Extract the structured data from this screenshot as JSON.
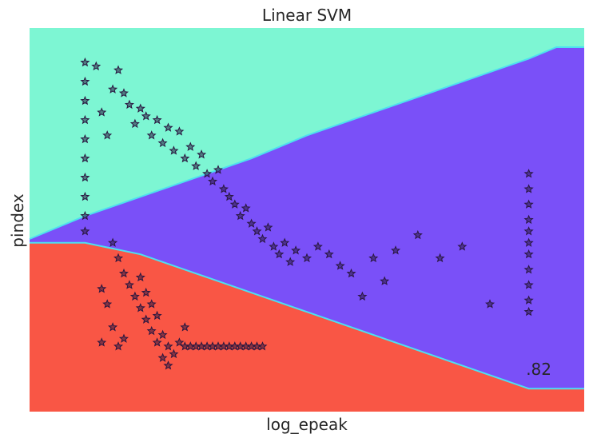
{
  "chart_data": {
    "type": "scatter",
    "title": "Linear SVM",
    "xlabel": "log_epeak",
    "ylabel": "pindex",
    "xlim": [
      0,
      1
    ],
    "ylim": [
      0,
      1
    ],
    "grid": false,
    "legend": "none",
    "score_label": ".82",
    "region_colors": {
      "top": "#7df6d3",
      "middle": "#7a50f8",
      "bottom": "#f95645",
      "boundary": "#4de0f0"
    },
    "decision_boundaries": {
      "upper": [
        [
          0.0,
          0.45
        ],
        [
          0.1,
          0.51
        ],
        [
          0.2,
          0.56
        ],
        [
          0.3,
          0.61
        ],
        [
          0.4,
          0.66
        ],
        [
          0.5,
          0.72
        ],
        [
          0.6,
          0.77
        ],
        [
          0.7,
          0.82
        ],
        [
          0.8,
          0.87
        ],
        [
          0.9,
          0.92
        ],
        [
          0.95,
          0.95
        ],
        [
          1.0,
          0.95
        ]
      ],
      "lower": [
        [
          0.0,
          0.44
        ],
        [
          0.1,
          0.44
        ],
        [
          0.2,
          0.41
        ],
        [
          0.3,
          0.36
        ],
        [
          0.4,
          0.31
        ],
        [
          0.5,
          0.26
        ],
        [
          0.6,
          0.21
        ],
        [
          0.7,
          0.16
        ],
        [
          0.8,
          0.11
        ],
        [
          0.9,
          0.06
        ],
        [
          1.0,
          0.06
        ]
      ]
    },
    "marker": "star",
    "marker_color": "#2a1740",
    "series": [
      {
        "points": [
          [
            0.1,
            0.91
          ],
          [
            0.1,
            0.86
          ],
          [
            0.1,
            0.81
          ],
          [
            0.1,
            0.76
          ],
          [
            0.1,
            0.71
          ],
          [
            0.1,
            0.66
          ],
          [
            0.1,
            0.61
          ],
          [
            0.1,
            0.56
          ],
          [
            0.1,
            0.51
          ],
          [
            0.1,
            0.47
          ],
          [
            0.12,
            0.9
          ],
          [
            0.13,
            0.78
          ],
          [
            0.14,
            0.72
          ],
          [
            0.15,
            0.84
          ],
          [
            0.16,
            0.89
          ],
          [
            0.17,
            0.83
          ],
          [
            0.18,
            0.8
          ],
          [
            0.19,
            0.75
          ],
          [
            0.2,
            0.79
          ],
          [
            0.21,
            0.77
          ],
          [
            0.22,
            0.72
          ],
          [
            0.23,
            0.76
          ],
          [
            0.24,
            0.7
          ],
          [
            0.25,
            0.74
          ],
          [
            0.26,
            0.68
          ],
          [
            0.27,
            0.73
          ],
          [
            0.28,
            0.66
          ],
          [
            0.29,
            0.69
          ],
          [
            0.3,
            0.64
          ],
          [
            0.31,
            0.67
          ],
          [
            0.32,
            0.62
          ],
          [
            0.33,
            0.6
          ],
          [
            0.34,
            0.63
          ],
          [
            0.35,
            0.58
          ],
          [
            0.36,
            0.56
          ],
          [
            0.37,
            0.54
          ],
          [
            0.38,
            0.51
          ],
          [
            0.39,
            0.53
          ],
          [
            0.4,
            0.49
          ],
          [
            0.41,
            0.47
          ],
          [
            0.42,
            0.45
          ],
          [
            0.43,
            0.48
          ],
          [
            0.44,
            0.43
          ],
          [
            0.45,
            0.41
          ],
          [
            0.46,
            0.44
          ],
          [
            0.47,
            0.39
          ],
          [
            0.48,
            0.42
          ],
          [
            0.5,
            0.4
          ],
          [
            0.52,
            0.43
          ],
          [
            0.54,
            0.41
          ],
          [
            0.56,
            0.38
          ],
          [
            0.58,
            0.36
          ],
          [
            0.6,
            0.3
          ],
          [
            0.62,
            0.4
          ],
          [
            0.64,
            0.34
          ],
          [
            0.66,
            0.42
          ],
          [
            0.7,
            0.46
          ],
          [
            0.74,
            0.4
          ],
          [
            0.78,
            0.43
          ],
          [
            0.83,
            0.28
          ],
          [
            0.15,
            0.44
          ],
          [
            0.16,
            0.4
          ],
          [
            0.17,
            0.36
          ],
          [
            0.18,
            0.33
          ],
          [
            0.19,
            0.3
          ],
          [
            0.2,
            0.27
          ],
          [
            0.21,
            0.24
          ],
          [
            0.22,
            0.21
          ],
          [
            0.23,
            0.18
          ],
          [
            0.24,
            0.14
          ],
          [
            0.25,
            0.12
          ],
          [
            0.26,
            0.15
          ],
          [
            0.27,
            0.18
          ],
          [
            0.28,
            0.22
          ],
          [
            0.2,
            0.35
          ],
          [
            0.21,
            0.31
          ],
          [
            0.22,
            0.28
          ],
          [
            0.23,
            0.25
          ],
          [
            0.24,
            0.2
          ],
          [
            0.25,
            0.17
          ],
          [
            0.13,
            0.32
          ],
          [
            0.14,
            0.28
          ],
          [
            0.15,
            0.22
          ],
          [
            0.16,
            0.17
          ],
          [
            0.17,
            0.19
          ],
          [
            0.13,
            0.18
          ],
          [
            0.28,
            0.17
          ],
          [
            0.29,
            0.17
          ],
          [
            0.3,
            0.17
          ],
          [
            0.31,
            0.17
          ],
          [
            0.32,
            0.17
          ],
          [
            0.33,
            0.17
          ],
          [
            0.34,
            0.17
          ],
          [
            0.35,
            0.17
          ],
          [
            0.36,
            0.17
          ],
          [
            0.37,
            0.17
          ],
          [
            0.38,
            0.17
          ],
          [
            0.39,
            0.17
          ],
          [
            0.4,
            0.17
          ],
          [
            0.41,
            0.17
          ],
          [
            0.42,
            0.17
          ],
          [
            0.9,
            0.62
          ],
          [
            0.9,
            0.58
          ],
          [
            0.9,
            0.54
          ],
          [
            0.9,
            0.5
          ],
          [
            0.9,
            0.47
          ],
          [
            0.9,
            0.44
          ],
          [
            0.9,
            0.41
          ],
          [
            0.9,
            0.37
          ],
          [
            0.9,
            0.33
          ],
          [
            0.9,
            0.29
          ],
          [
            0.9,
            0.26
          ]
        ]
      }
    ]
  }
}
